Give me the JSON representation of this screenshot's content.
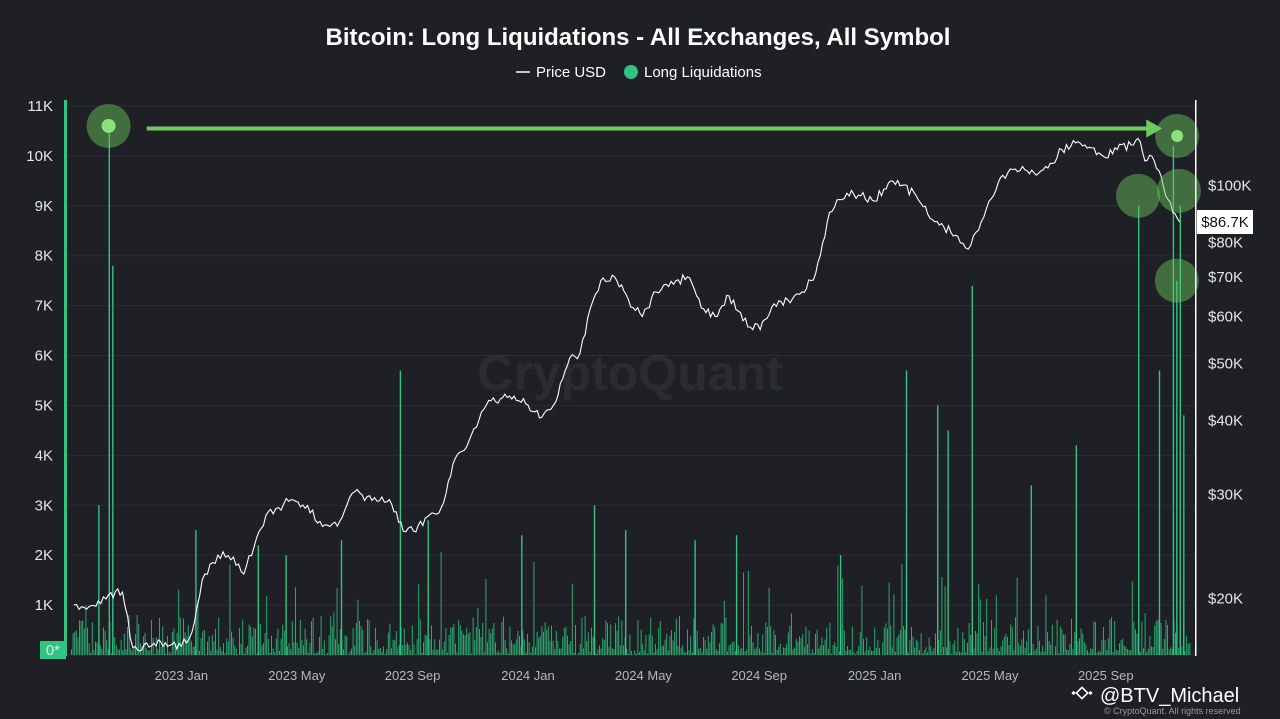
{
  "colors": {
    "background": "#1f1f26",
    "price_line": "#ffffff",
    "liquidations": "#2fc384",
    "liquidations_bar": "#27a96f",
    "annotation": "#6ccb5f",
    "grid": "#2c2c34"
  },
  "watermark": "CryptoQuant",
  "credit": {
    "handle": "@BTV_Michael",
    "small": "© CryptoQuant. All rights reserved"
  },
  "chart_data": {
    "type": "bar",
    "title": "Bitcoin: Long Liquidations - All Exchanges, All Symbol",
    "legend": [
      {
        "name": "Price USD",
        "marker": "line"
      },
      {
        "name": "Long Liquidations",
        "marker": "dot"
      }
    ],
    "left_axis": {
      "ticks": [
        "11K",
        "10K",
        "9K",
        "8K",
        "7K",
        "6K",
        "5K",
        "4K",
        "3K",
        "2K",
        "1K",
        "0*"
      ],
      "tick_values": [
        11000,
        10000,
        9000,
        8000,
        7000,
        6000,
        5000,
        4000,
        3000,
        2000,
        1000,
        0
      ],
      "range": [
        0,
        11000
      ]
    },
    "right_axis": {
      "scale": "log",
      "ticks": [
        "$100K",
        "$80K",
        "$70K",
        "$60K",
        "$50K",
        "$40K",
        "$30K",
        "$20K"
      ],
      "tick_values": [
        100000,
        80000,
        70000,
        60000,
        50000,
        40000,
        30000,
        20000
      ],
      "range": [
        14000,
        130000
      ],
      "current_label": "$86.7K",
      "current_value": 86700
    },
    "x_axis": {
      "ticks": [
        "2023 Jan",
        "2023 May",
        "2023 Sep",
        "2024 Jan",
        "2024 May",
        "2024 Sep",
        "2025 Jan",
        "2025 May",
        "2025 Sep"
      ],
      "tick_times": [
        2023.0,
        2023.333,
        2023.667,
        2024.0,
        2024.333,
        2024.667,
        2025.0,
        2025.333,
        2025.667
      ],
      "range": [
        2022.67,
        2025.91
      ]
    },
    "price_series": {
      "name": "Price USD",
      "x": [
        2022.69,
        2022.72,
        2022.76,
        2022.79,
        2022.83,
        2022.86,
        2022.88,
        2022.92,
        2022.96,
        2023.0,
        2023.03,
        2023.06,
        2023.09,
        2023.12,
        2023.15,
        2023.18,
        2023.21,
        2023.25,
        2023.28,
        2023.31,
        2023.35,
        2023.4,
        2023.45,
        2023.5,
        2023.55,
        2023.6,
        2023.64,
        2023.67,
        2023.71,
        2023.75,
        2023.79,
        2023.83,
        2023.88,
        2023.92,
        2023.96,
        2024.0,
        2024.04,
        2024.08,
        2024.12,
        2024.15,
        2024.18,
        2024.21,
        2024.25,
        2024.29,
        2024.33,
        2024.37,
        2024.42,
        2024.46,
        2024.5,
        2024.54,
        2024.58,
        2024.62,
        2024.67,
        2024.71,
        2024.75,
        2024.79,
        2024.83,
        2024.87,
        2024.92,
        2024.96,
        2025.0,
        2025.04,
        2025.08,
        2025.12,
        2025.16,
        2025.2,
        2025.24,
        2025.27,
        2025.3,
        2025.33,
        2025.37,
        2025.42,
        2025.46,
        2025.5,
        2025.54,
        2025.58,
        2025.62,
        2025.66,
        2025.7,
        2025.74,
        2025.76,
        2025.78,
        2025.8,
        2025.82,
        2025.84,
        2025.86,
        2025.88
      ],
      "y": [
        19500,
        19300,
        19800,
        20300,
        20500,
        16500,
        16300,
        16800,
        16600,
        16600,
        17500,
        21500,
        23000,
        24000,
        23500,
        22000,
        24500,
        28000,
        28500,
        29200,
        28800,
        27000,
        26500,
        30300,
        29300,
        29400,
        26000,
        26000,
        27500,
        28500,
        34500,
        37000,
        42500,
        43500,
        44000,
        42500,
        40500,
        43000,
        51000,
        52000,
        62000,
        69000,
        70000,
        64000,
        60000,
        66000,
        68000,
        70000,
        62000,
        60000,
        65000,
        59000,
        57000,
        63000,
        64000,
        66000,
        71000,
        90000,
        97000,
        96000,
        94000,
        101000,
        100000,
        96000,
        88000,
        85000,
        82000,
        78000,
        84000,
        94000,
        104000,
        106000,
        105000,
        107000,
        115000,
        118000,
        116000,
        112000,
        115000,
        117000,
        120000,
        110000,
        112000,
        106000,
        96000,
        90000,
        86700
      ]
    },
    "liquidations_series": {
      "name": "Long Liquidations",
      "spikes": [
        {
          "x": 2022.79,
          "y": 10600
        },
        {
          "x": 2022.8,
          "y": 7800
        },
        {
          "x": 2022.76,
          "y": 3000
        },
        {
          "x": 2023.04,
          "y": 2500
        },
        {
          "x": 2023.22,
          "y": 2200
        },
        {
          "x": 2023.3,
          "y": 2000
        },
        {
          "x": 2023.46,
          "y": 2300
        },
        {
          "x": 2023.63,
          "y": 5700
        },
        {
          "x": 2023.71,
          "y": 2700
        },
        {
          "x": 2023.98,
          "y": 2400
        },
        {
          "x": 2024.19,
          "y": 3000
        },
        {
          "x": 2024.28,
          "y": 2500
        },
        {
          "x": 2024.48,
          "y": 2300
        },
        {
          "x": 2024.6,
          "y": 2400
        },
        {
          "x": 2024.9,
          "y": 2000
        },
        {
          "x": 2025.09,
          "y": 5700
        },
        {
          "x": 2025.18,
          "y": 5000
        },
        {
          "x": 2025.21,
          "y": 4500
        },
        {
          "x": 2025.28,
          "y": 7400
        },
        {
          "x": 2025.45,
          "y": 3400
        },
        {
          "x": 2025.58,
          "y": 4200
        },
        {
          "x": 2025.76,
          "y": 9000
        },
        {
          "x": 2025.82,
          "y": 5700
        },
        {
          "x": 2025.86,
          "y": 10200
        },
        {
          "x": 2025.87,
          "y": 7500
        },
        {
          "x": 2025.88,
          "y": 9000
        },
        {
          "x": 2025.89,
          "y": 4800
        }
      ]
    },
    "annotations": {
      "circles": [
        {
          "x": 2022.79,
          "y": 10600,
          "kind": "left-axis"
        },
        {
          "x": 2025.873,
          "y": 10400,
          "kind": "left-axis"
        },
        {
          "x": 2025.76,
          "y": 9200,
          "kind": "left-axis"
        },
        {
          "x": 2025.878,
          "y": 9300,
          "kind": "left-axis"
        },
        {
          "x": 2025.872,
          "y": 7500,
          "kind": "left-axis"
        }
      ],
      "arrow": {
        "x_from": 2022.9,
        "x_to": 2025.83,
        "y": 10550
      }
    }
  }
}
